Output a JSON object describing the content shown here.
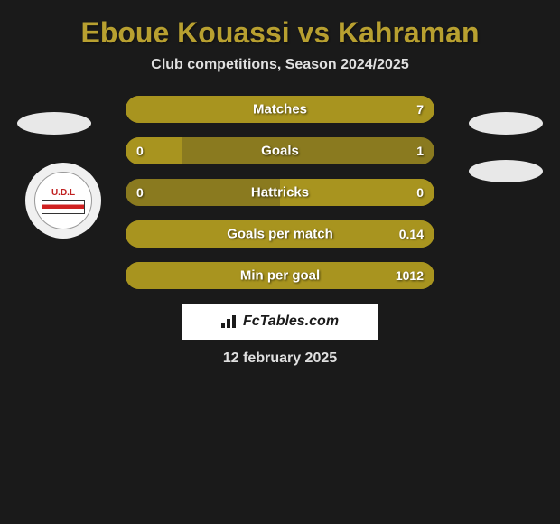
{
  "title": "Eboue Kouassi vs Kahraman",
  "subtitle": "Club competitions, Season 2024/2025",
  "date": "12 february 2025",
  "watermark": "FcTables.com",
  "club_logo_text": "U.D.L",
  "colors": {
    "background": "#1a1a1a",
    "title_color": "#b8a030",
    "text_color": "#e0e0e0",
    "bar_bg": "#8a7a1f",
    "bar_fill": "#a8941f",
    "avatar_bg": "#e8e8e8"
  },
  "stats": [
    {
      "label": "Matches",
      "left_value": "",
      "right_value": "7",
      "left_pct": 0,
      "right_pct": 100
    },
    {
      "label": "Goals",
      "left_value": "0",
      "right_value": "1",
      "left_pct": 18,
      "right_pct": 82
    },
    {
      "label": "Hattricks",
      "left_value": "0",
      "right_value": "0",
      "left_pct": 0,
      "right_pct": 50
    },
    {
      "label": "Goals per match",
      "left_value": "",
      "right_value": "0.14",
      "left_pct": 0,
      "right_pct": 100
    },
    {
      "label": "Min per goal",
      "left_value": "",
      "right_value": "1012",
      "left_pct": 0,
      "right_pct": 100
    }
  ]
}
